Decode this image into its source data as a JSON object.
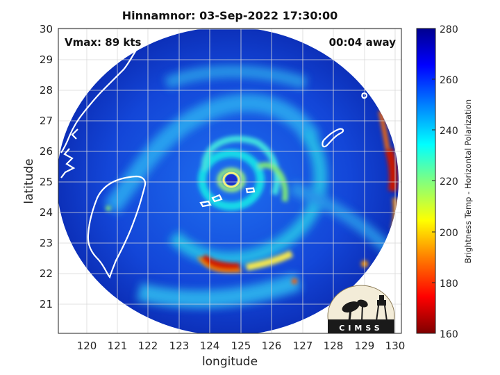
{
  "title": "Hinnamnor: 03-Sep-2022 17:30:00",
  "vmax_label": "Vmax: 89 kts",
  "time_label": "00:04 away",
  "chart_data": {
    "type": "map",
    "xlabel": "longitude",
    "ylabel": "latitude",
    "xlim": [
      119.2,
      130.2
    ],
    "ylim": [
      20.1,
      30.1
    ],
    "xticks": [
      "120",
      "121",
      "122",
      "123",
      "124",
      "125",
      "126",
      "127",
      "128",
      "129",
      "130"
    ],
    "yticks": [
      "21",
      "22",
      "23",
      "24",
      "25",
      "26",
      "27",
      "28",
      "29",
      "30"
    ],
    "grid": true,
    "storm_center": [
      124.6,
      25.0
    ],
    "colorbar": {
      "label": "Brightness Temp - Horizontal Polarization",
      "min": 160,
      "max": 280,
      "ticks": [
        "160",
        "180",
        "200",
        "220",
        "240",
        "260",
        "280"
      ],
      "colormap": "jet",
      "colors": [
        "#7f0000",
        "#ff0000",
        "#ff8000",
        "#ffff00",
        "#80ff80",
        "#00ffff",
        "#0080ff",
        "#0000ff",
        "#00008f"
      ]
    },
    "logo_text": "CIMSS"
  }
}
